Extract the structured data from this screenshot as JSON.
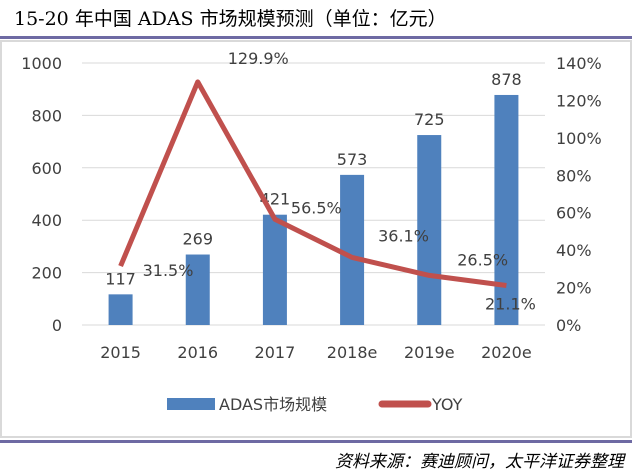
{
  "title": "15-20 年中国 ADAS 市场规模预测（单位：亿元）",
  "source": "资料来源：赛迪顾问，太平洋证券整理",
  "chart_data": {
    "type": "bar+line",
    "categories": [
      "2015",
      "2016",
      "2017",
      "2018e",
      "2019e",
      "2020e"
    ],
    "series": [
      {
        "name": "ADAS市场规模",
        "type": "bar",
        "axis": "left",
        "color": "#4f81bd",
        "values": [
          117,
          269,
          421,
          573,
          725,
          878
        ],
        "labels": [
          "117",
          "269",
          "421",
          "573",
          "725",
          "878"
        ]
      },
      {
        "name": "YOY",
        "type": "line",
        "axis": "right",
        "color": "#c0504d",
        "values": [
          31.5,
          129.9,
          56.5,
          36.1,
          26.5,
          21.1
        ],
        "labels": [
          "31.5%",
          "129.9%",
          "56.5%",
          "36.1%",
          "26.5%",
          "21.1%"
        ]
      }
    ],
    "left_axis": {
      "ylim": [
        0,
        1000
      ],
      "ticks": [
        "0",
        "200",
        "400",
        "600",
        "800",
        "1000"
      ]
    },
    "right_axis": {
      "ylim": [
        0,
        140
      ],
      "ticks": [
        "0%",
        "20%",
        "40%",
        "60%",
        "80%",
        "100%",
        "120%",
        "140%"
      ]
    },
    "grid": true,
    "legend": "bottom"
  }
}
